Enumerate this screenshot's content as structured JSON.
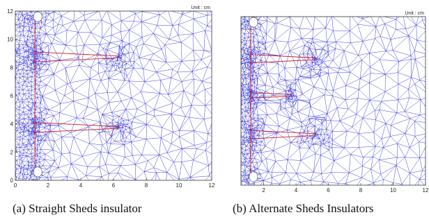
{
  "figures": [
    {
      "id": "a",
      "unit_label": "Unit : cm",
      "caption": "(a) Straight Sheds insulator",
      "x_ticks": [
        "0",
        "2",
        "4",
        "6",
        "8",
        "10",
        "12"
      ],
      "y_ticks": [
        "0",
        "2",
        "4",
        "6",
        "8",
        "10",
        "12"
      ],
      "x_range": [
        0,
        12
      ],
      "y_range": [
        0,
        12
      ],
      "sheds": [
        {
          "y_top": 9.1,
          "y_bottom": 8.4,
          "tip_x": 6.3
        },
        {
          "y_top": 4.1,
          "y_bottom": 3.4,
          "tip_x": 6.3
        }
      ],
      "rod_x": 1.2,
      "electrode_y": [
        11.6,
        0.6
      ]
    },
    {
      "id": "b",
      "unit_label": "Unit : cm",
      "caption": "(b) Alternate Sheds Insulators",
      "x_ticks": [
        "2",
        "4",
        "6",
        "8",
        "10",
        "12"
      ],
      "y_ticks": [],
      "x_range": [
        0.6,
        12
      ],
      "y_range": [
        0,
        12
      ],
      "sheds": [
        {
          "y_top": 9.3,
          "y_bottom": 8.7,
          "tip_x": 5.2
        },
        {
          "y_top": 6.6,
          "y_bottom": 6.2,
          "tip_x": 3.7
        },
        {
          "y_top": 3.9,
          "y_bottom": 3.3,
          "tip_x": 5.2
        }
      ],
      "rod_x": 1.2,
      "electrode_y": [
        11.6,
        0.6
      ]
    }
  ],
  "colors": {
    "mesh": "#2828d8",
    "shed": "#cc2020",
    "frame": "#333333",
    "electrode": "#ffffff"
  }
}
